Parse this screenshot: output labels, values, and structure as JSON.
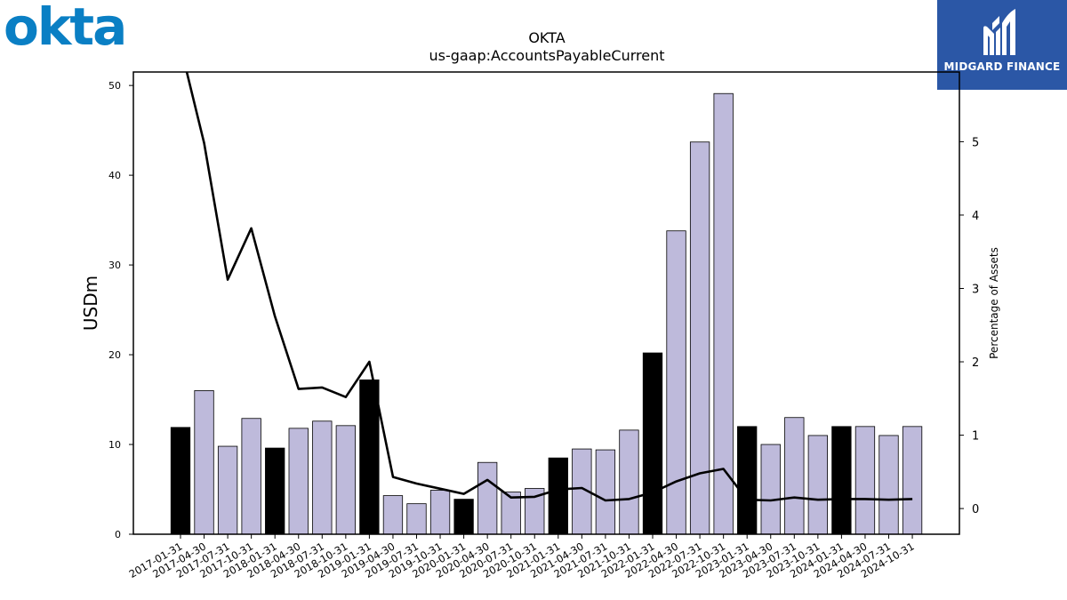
{
  "logos": {
    "left": {
      "text": "okta",
      "color": "#0a7fc4"
    },
    "right": {
      "text": "MIDGARD FINANCE",
      "background": "#2b57a6"
    }
  },
  "chart_data": {
    "type": "bar",
    "title": "OKTA",
    "subtitle": "us-gaap:AccountsPayableCurrent",
    "ylabel": "USDm",
    "y2label": "Percentage of Assets",
    "ylim": [
      0,
      51.5
    ],
    "y2lim": [
      -0.35,
      5.95
    ],
    "yticks": [
      0,
      10,
      20,
      30,
      40,
      50
    ],
    "y2ticks": [
      0,
      1,
      2,
      3,
      4,
      5
    ],
    "categories": [
      "2017-01-31",
      "2017-04-30",
      "2017-07-31",
      "2017-10-31",
      "2018-01-31",
      "2018-04-30",
      "2018-07-31",
      "2018-10-31",
      "2019-01-31",
      "2019-04-30",
      "2019-07-31",
      "2019-10-31",
      "2020-01-31",
      "2020-04-30",
      "2020-07-31",
      "2020-10-31",
      "2021-01-31",
      "2021-04-30",
      "2021-07-31",
      "2021-10-31",
      "2022-01-31",
      "2022-04-30",
      "2022-07-31",
      "2022-10-31",
      "2023-01-31",
      "2023-04-30",
      "2023-07-31",
      "2023-10-31",
      "2024-01-31",
      "2024-04-30",
      "2024-07-31",
      "2024-10-31"
    ],
    "values": [
      11.9,
      16.0,
      9.8,
      12.9,
      9.6,
      11.8,
      12.6,
      12.1,
      17.2,
      4.3,
      3.4,
      4.9,
      3.9,
      8.0,
      4.7,
      5.1,
      8.5,
      9.5,
      9.4,
      11.6,
      20.2,
      33.8,
      43.7,
      49.1,
      12.0,
      10.0,
      13.0,
      11.0,
      12.0,
      12.0,
      11.0,
      12.0
    ],
    "highlight": [
      true,
      false,
      false,
      false,
      true,
      false,
      false,
      false,
      true,
      false,
      false,
      false,
      true,
      false,
      false,
      false,
      true,
      false,
      false,
      false,
      true,
      false,
      false,
      false,
      true,
      false,
      false,
      false,
      true,
      false,
      false,
      false
    ],
    "line_values": [
      6.3,
      4.98,
      3.12,
      3.82,
      2.62,
      1.63,
      1.65,
      1.52,
      2.0,
      0.43,
      0.34,
      0.27,
      0.2,
      0.39,
      0.15,
      0.16,
      0.26,
      0.28,
      0.11,
      0.13,
      0.22,
      0.37,
      0.48,
      0.54,
      0.12,
      0.11,
      0.15,
      0.12,
      0.13,
      0.13,
      0.12,
      0.13
    ],
    "colors": {
      "bar": "#bebadb",
      "bar_highlight": "#000000",
      "line": "#000000"
    },
    "grid": false
  }
}
